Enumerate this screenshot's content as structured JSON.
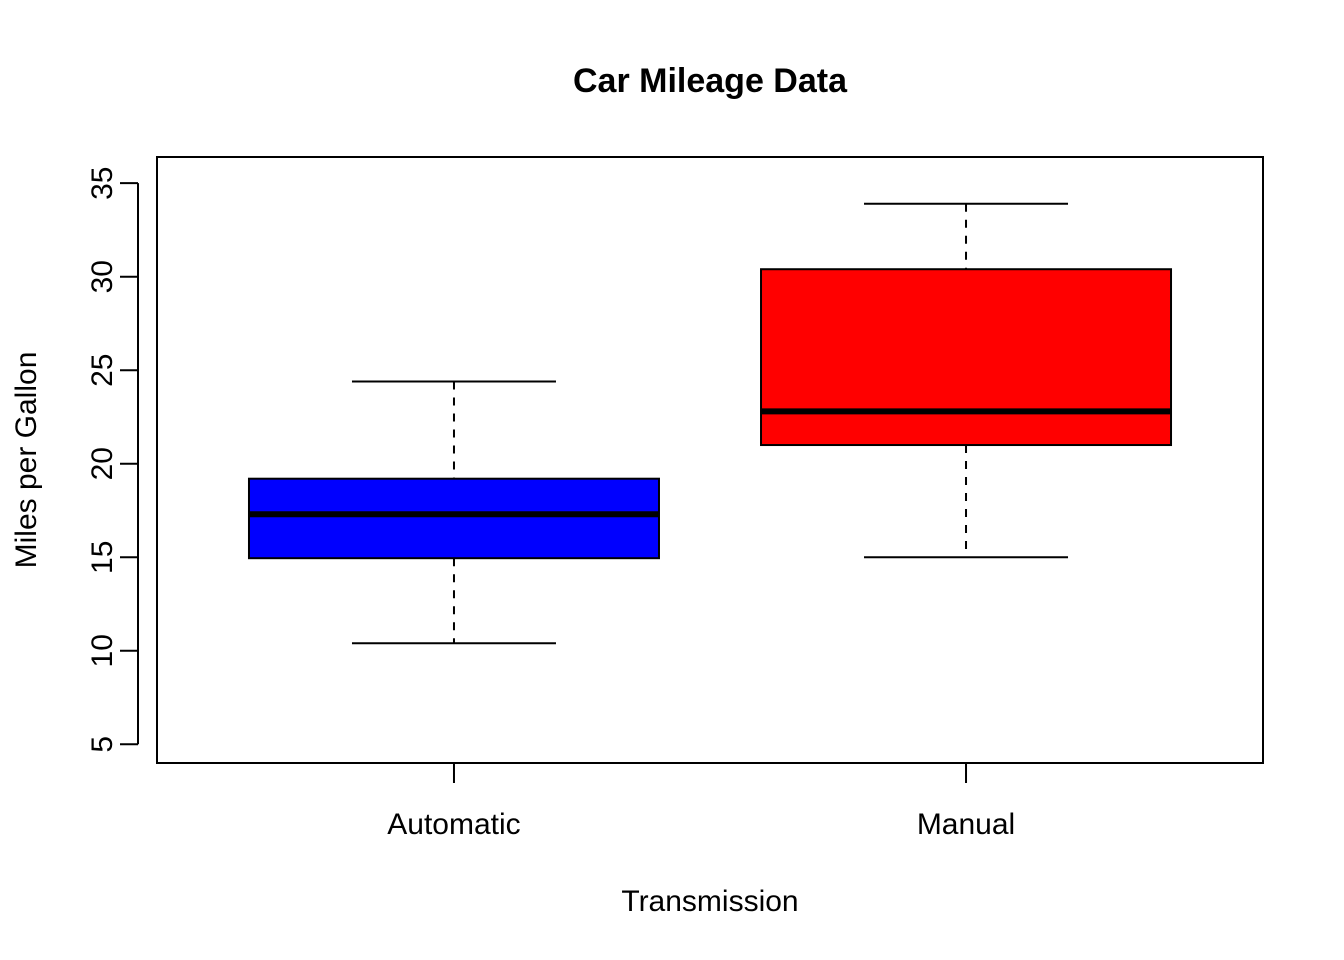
{
  "chart_data": {
    "type": "box",
    "title": "Car Mileage Data",
    "xlabel": "Transmission",
    "ylabel": "Miles per Gallon",
    "ylim": [
      4,
      36.4
    ],
    "yticks": [
      "5",
      "10",
      "15",
      "20",
      "25",
      "30",
      "35"
    ],
    "categories": [
      "Automatic",
      "Manual"
    ],
    "colors": [
      "#0000ff",
      "#ff0000"
    ],
    "boxes": [
      {
        "category": "Automatic",
        "min": 10.4,
        "q1": 14.95,
        "median": 17.3,
        "q3": 19.2,
        "max": 24.4
      },
      {
        "category": "Manual",
        "min": 15.0,
        "q1": 21.0,
        "median": 22.8,
        "q3": 30.4,
        "max": 33.9
      }
    ]
  }
}
